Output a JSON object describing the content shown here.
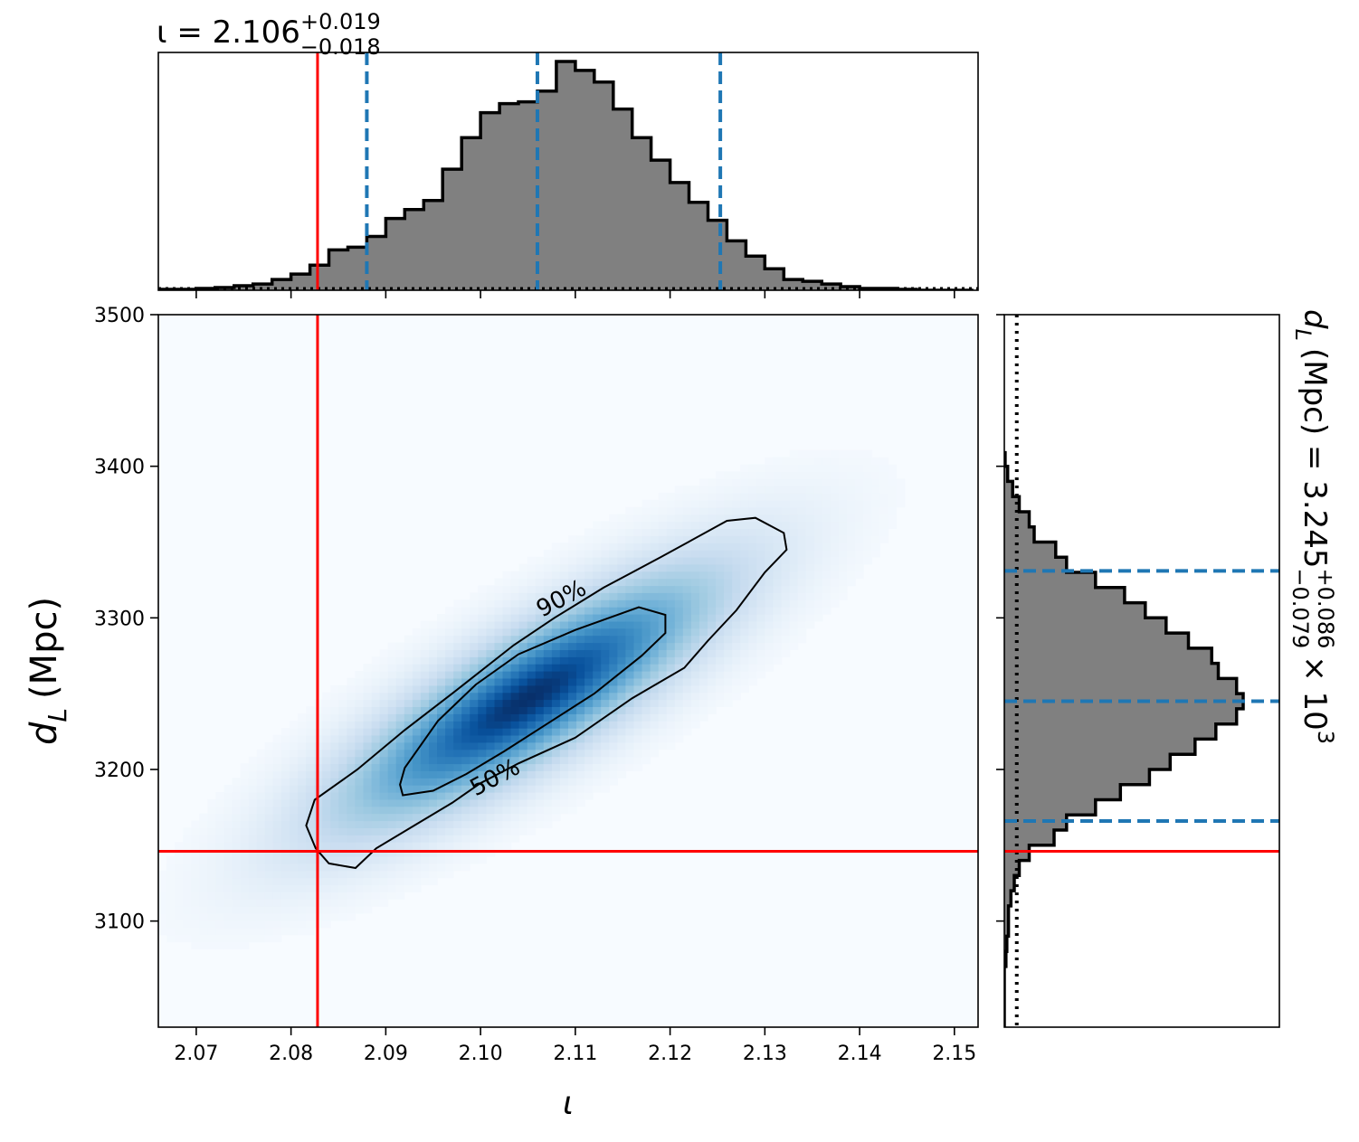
{
  "chart_data": [
    {
      "type": "heatmap",
      "panel": "joint",
      "xlabel": "ι",
      "ylabel_main": "d",
      "ylabel_sub": "L",
      "ylabel_unit": "(Mpc)",
      "xlim": [
        2.066,
        2.1525
      ],
      "ylim": [
        3030,
        3500
      ],
      "xticks": [
        2.07,
        2.08,
        2.09,
        2.1,
        2.11,
        2.12,
        2.13,
        2.14,
        2.15
      ],
      "xtick_labels": [
        "2.07",
        "2.08",
        "2.09",
        "2.10",
        "2.11",
        "2.12",
        "2.13",
        "2.14",
        "2.15"
      ],
      "yticks": [
        3100,
        3200,
        3300,
        3400,
        3500
      ],
      "ytick_labels": [
        "3100",
        "3200",
        "3300",
        "3400",
        "3500"
      ],
      "colormap": "Blues",
      "density_peak": {
        "x": 2.105,
        "y": 3247
      },
      "truth": {
        "x": 2.0828,
        "y": 3146
      },
      "truth_color": "#ff0000",
      "contours": [
        {
          "label": "90%",
          "points": [
            [
              2.0868,
              3135
            ],
            [
              2.084,
              3138
            ],
            [
              2.0826,
              3148
            ],
            [
              2.0816,
              3163
            ],
            [
              2.0825,
              3180
            ],
            [
              2.087,
              3200
            ],
            [
              2.092,
              3226
            ],
            [
              2.097,
              3250
            ],
            [
              2.1035,
              3282
            ],
            [
              2.1078,
              3300
            ],
            [
              2.113,
              3320
            ],
            [
              2.119,
              3340
            ],
            [
              2.126,
              3364
            ],
            [
              2.129,
              3366
            ],
            [
              2.132,
              3356
            ],
            [
              2.1323,
              3345
            ],
            [
              2.13,
              3330
            ],
            [
              2.127,
              3305
            ],
            [
              2.124,
              3285
            ],
            [
              2.1215,
              3267
            ],
            [
              2.116,
              3247
            ],
            [
              2.11,
              3221
            ],
            [
              2.104,
              3204
            ],
            [
              2.1,
              3191
            ],
            [
              2.097,
              3178
            ],
            [
              2.093,
              3163
            ],
            [
              2.089,
              3148
            ],
            [
              2.0868,
              3135
            ]
          ],
          "label_pos": {
            "x": 2.1085,
            "y": 3313
          }
        },
        {
          "label": "50%",
          "points": [
            [
              2.0918,
              3183
            ],
            [
              2.0915,
              3190
            ],
            [
              2.092,
              3201
            ],
            [
              2.0955,
              3232
            ],
            [
              2.0995,
              3256
            ],
            [
              2.104,
              3276
            ],
            [
              2.11,
              3292
            ],
            [
              2.1167,
              3307
            ],
            [
              2.1195,
              3302
            ],
            [
              2.1195,
              3290
            ],
            [
              2.117,
              3275
            ],
            [
              2.112,
              3250
            ],
            [
              2.107,
              3230
            ],
            [
              2.1025,
              3212
            ],
            [
              2.0985,
              3197
            ],
            [
              2.095,
              3186
            ],
            [
              2.0918,
              3183
            ]
          ],
          "label_pos": {
            "x": 2.1015,
            "y": 3195
          }
        }
      ]
    },
    {
      "type": "bar",
      "panel": "top-marginal",
      "title_base": "ι = 2.106",
      "title_sup": "+0.019",
      "title_sub": "−0.018",
      "median": 2.106,
      "interval": [
        2.088,
        2.1253
      ],
      "interval_color": "#1f77b4",
      "fill_color": "#808080",
      "truth": 2.0828,
      "bin_edges": [
        2.066,
        2.068,
        2.07,
        2.072,
        2.074,
        2.076,
        2.078,
        2.08,
        2.082,
        2.084,
        2.086,
        2.088,
        2.09,
        2.092,
        2.094,
        2.096,
        2.098,
        2.1,
        2.102,
        2.104,
        2.106,
        2.108,
        2.11,
        2.112,
        2.114,
        2.116,
        2.118,
        2.12,
        2.122,
        2.124,
        2.126,
        2.128,
        2.13,
        2.132,
        2.134,
        2.136,
        2.138,
        2.14,
        2.142,
        2.144,
        2.146,
        2.148,
        2.15,
        2.152
      ],
      "counts": [
        1,
        1,
        2,
        3,
        5,
        7,
        12,
        18,
        28,
        45,
        48,
        60,
        80,
        90,
        100,
        135,
        170,
        198,
        208,
        210,
        222,
        255,
        245,
        232,
        202,
        170,
        145,
        120,
        98,
        78,
        55,
        38,
        24,
        12,
        10,
        7,
        4,
        2,
        2,
        1,
        0,
        0,
        0
      ],
      "prior_level": 2
    },
    {
      "type": "bar",
      "panel": "right-marginal",
      "orientation": "horizontal",
      "title_main": "d",
      "title_sub_label": "L",
      "title_rest": "(Mpc) = 3.245",
      "title_sup": "+0.086",
      "title_sub": "−0.079",
      "title_tail": "× 10",
      "title_exp": "3",
      "median": 3245,
      "interval": [
        3166,
        3331
      ],
      "interval_color": "#1f77b4",
      "fill_color": "#808080",
      "truth": 3146,
      "bin_edges": [
        3030,
        3040,
        3050,
        3060,
        3070,
        3080,
        3090,
        3100,
        3110,
        3120,
        3130,
        3140,
        3150,
        3160,
        3170,
        3180,
        3190,
        3200,
        3210,
        3220,
        3230,
        3240,
        3250,
        3260,
        3270,
        3280,
        3290,
        3300,
        3310,
        3320,
        3330,
        3340,
        3350,
        3360,
        3370,
        3380,
        3390,
        3400,
        3410
      ],
      "counts": [
        0,
        0,
        0,
        0,
        2,
        3,
        5,
        5,
        8,
        12,
        18,
        30,
        60,
        75,
        110,
        140,
        175,
        200,
        230,
        255,
        280,
        288,
        280,
        258,
        250,
        222,
        195,
        170,
        145,
        110,
        75,
        62,
        36,
        30,
        18,
        10,
        4,
        1
      ],
      "prior_level": 15
    }
  ]
}
